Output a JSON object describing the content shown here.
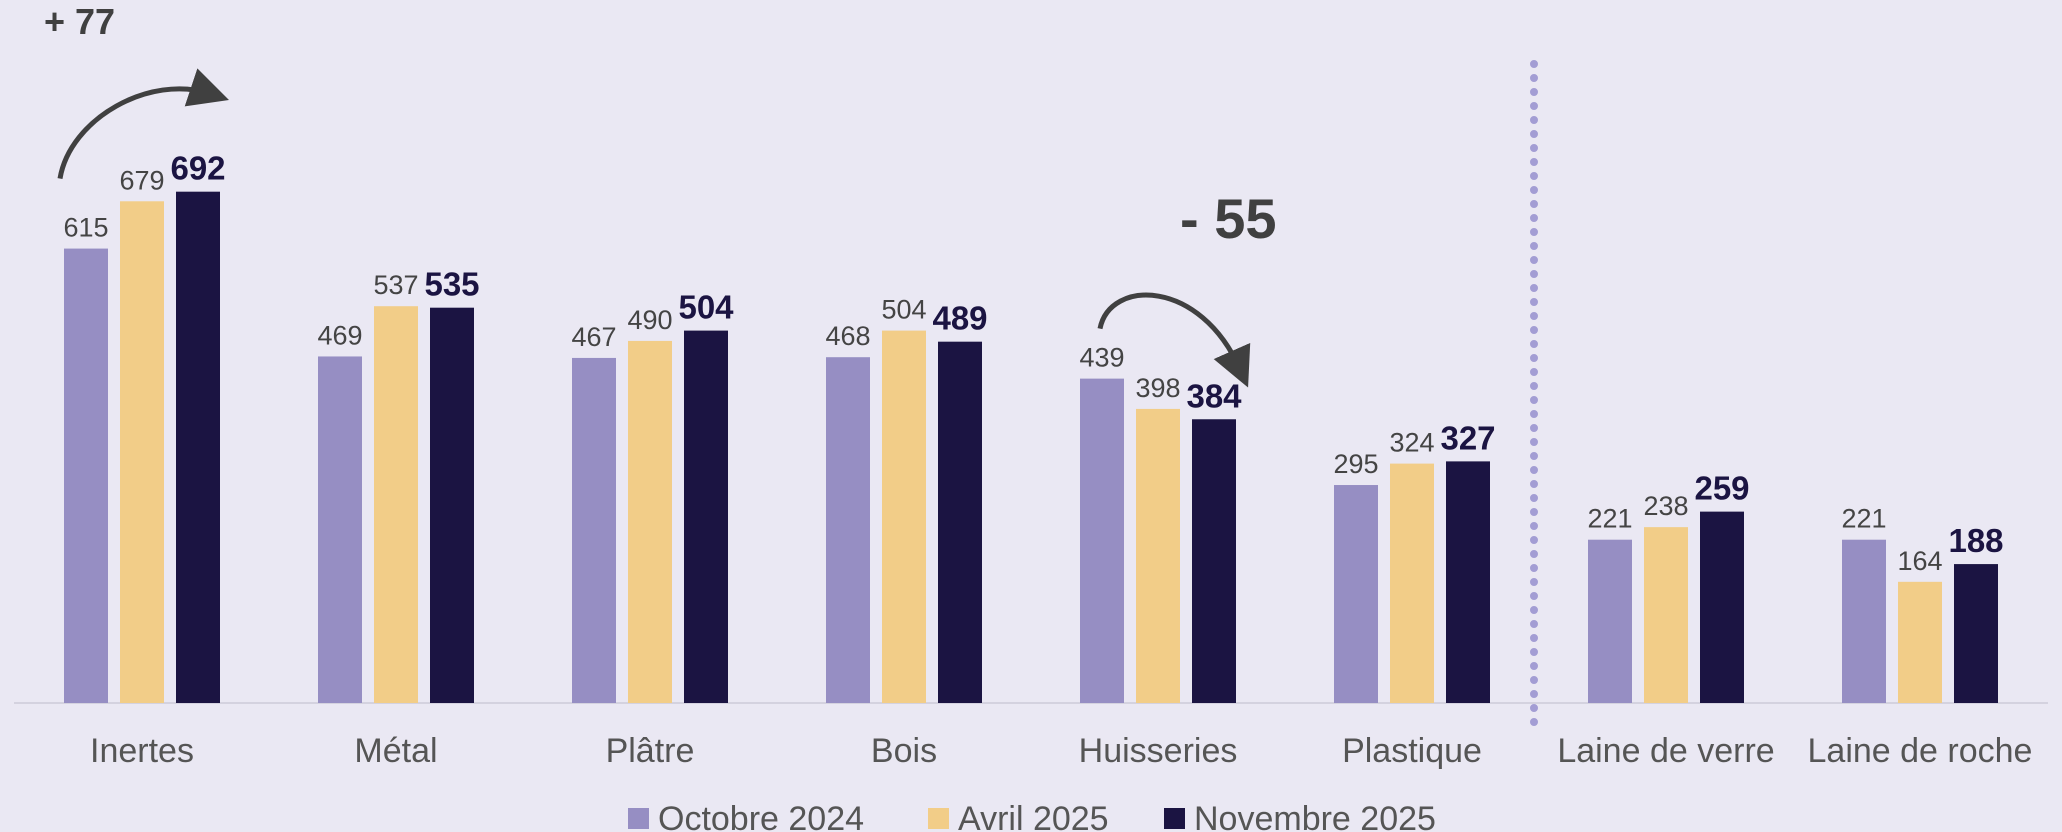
{
  "chart_data": {
    "type": "bar",
    "categories": [
      "Inertes",
      "Métal",
      "Plâtre",
      "Bois",
      "Huisseries",
      "Plastique",
      "Laine de verre",
      "Laine de roche"
    ],
    "series": [
      {
        "name": "Octobre 2024",
        "values": [
          615,
          469,
          467,
          468,
          439,
          295,
          221,
          221
        ]
      },
      {
        "name": "Avril 2025",
        "values": [
          679,
          537,
          490,
          504,
          398,
          324,
          238,
          164
        ]
      },
      {
        "name": "Novembre 2025",
        "values": [
          692,
          535,
          504,
          489,
          384,
          327,
          259,
          188
        ]
      }
    ],
    "ylim": [
      0,
      700
    ],
    "grid": false,
    "legend_position": "bottom",
    "colors": [
      "#968EC3",
      "#F2CD88",
      "#1B1442"
    ],
    "annotations": [
      {
        "text": "+ 77",
        "category": "Inertes",
        "from_series": 0,
        "to_series": 2,
        "direction": "up"
      },
      {
        "text": "- 55",
        "category": "Huisseries",
        "from_series": 0,
        "to_series": 2,
        "direction": "down"
      }
    ],
    "separator_after_category": "Plastique"
  }
}
